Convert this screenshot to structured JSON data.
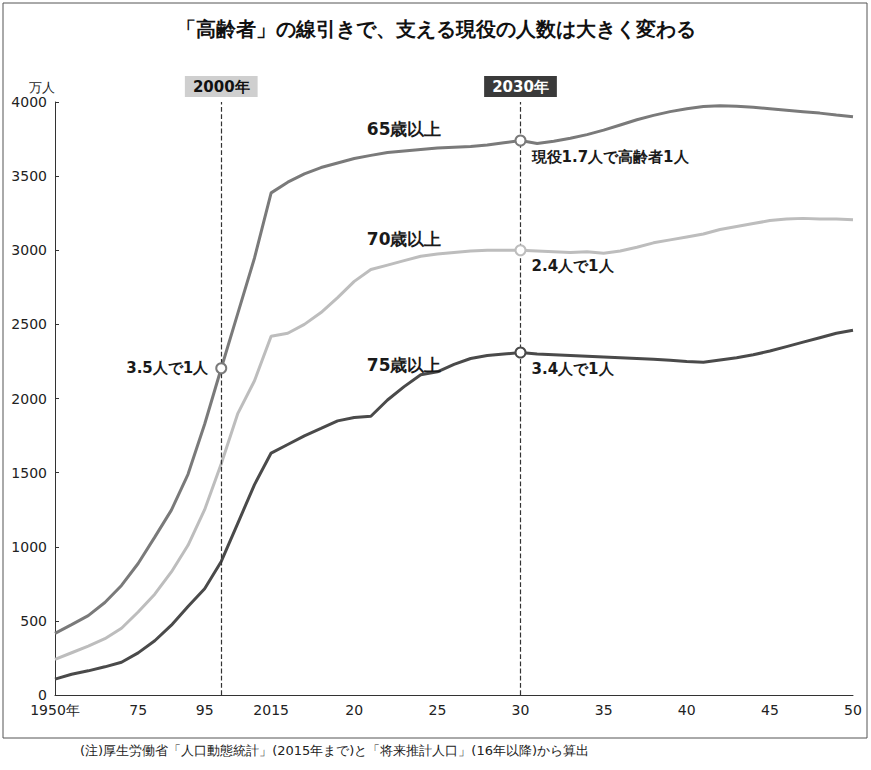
{
  "chart_data": {
    "type": "line",
    "title": "「高齢者」の線引きで、支える現役の人数は大きく変わる",
    "y_label": "万人",
    "note": "(注)厚生労働省「人口動態統計」(2015年まで)と「将来推計人口」(16年以降)から算出",
    "categories": [
      "1950年",
      null,
      null,
      null,
      null,
      "75",
      null,
      null,
      null,
      "95",
      null,
      null,
      null,
      "2015",
      null,
      null,
      null,
      null,
      "20",
      null,
      null,
      null,
      null,
      "25",
      null,
      null,
      null,
      null,
      "30",
      null,
      null,
      null,
      null,
      "35",
      null,
      null,
      null,
      null,
      "40",
      null,
      null,
      null,
      null,
      "45",
      null,
      null,
      null,
      null,
      "50"
    ],
    "series": [
      {
        "name": "65歳以上",
        "color": "#7a7a7a",
        "values": [
          416,
          475,
          535,
          624,
          739,
          887,
          1065,
          1247,
          1489,
          1826,
          2204,
          2576,
          2948,
          3387,
          3459,
          3515,
          3558,
          3589,
          3619,
          3640,
          3660,
          3670,
          3680,
          3690,
          3695,
          3700,
          3710,
          3725,
          3740,
          3720,
          3735,
          3755,
          3780,
          3810,
          3845,
          3880,
          3910,
          3935,
          3955,
          3970,
          3975,
          3972,
          3965,
          3955,
          3945,
          3935,
          3925,
          3912,
          3900
        ]
      },
      {
        "name": "70歳以上",
        "color": "#bdbdbd",
        "values": [
          240,
          285,
          330,
          380,
          450,
          560,
          680,
          830,
          1010,
          1250,
          1560,
          1900,
          2120,
          2420,
          2440,
          2500,
          2580,
          2680,
          2790,
          2870,
          2900,
          2930,
          2960,
          2975,
          2985,
          2995,
          3000,
          3000,
          3000,
          2995,
          2990,
          2985,
          2990,
          2980,
          2995,
          3020,
          3050,
          3070,
          3090,
          3110,
          3140,
          3160,
          3180,
          3200,
          3210,
          3215,
          3210,
          3210,
          3205
        ]
      },
      {
        "name": "75歳以上",
        "color": "#4a4a4a",
        "values": [
          107,
          140,
          163,
          190,
          221,
          284,
          366,
          471,
          597,
          717,
          901,
          1160,
          1419,
          1632,
          1690,
          1748,
          1798,
          1849,
          1872,
          1880,
          1990,
          2080,
          2160,
          2180,
          2230,
          2270,
          2290,
          2300,
          2310,
          2300,
          2295,
          2290,
          2285,
          2280,
          2275,
          2270,
          2265,
          2258,
          2250,
          2245,
          2260,
          2275,
          2295,
          2320,
          2350,
          2380,
          2410,
          2440,
          2460
        ]
      }
    ],
    "markers": [
      {
        "label": "2000年",
        "x_index": 10,
        "color": "#cfcfcf"
      },
      {
        "label": "2030年",
        "x_index": 28,
        "color": "#3a3a3a"
      }
    ],
    "annotations": [
      {
        "text": "3.5人で1人",
        "series": "65歳以上",
        "x_index": 10
      },
      {
        "text": "現役1.7人で高齢者1人",
        "series": "65歳以上",
        "x_index": 28
      },
      {
        "text": "2.4人で1人",
        "series": "70歳以上",
        "x_index": 28
      },
      {
        "text": "3.4人で1人",
        "series": "75歳以上",
        "x_index": 28
      }
    ],
    "ylim": [
      0,
      4000
    ],
    "yticks": [
      0,
      500,
      1000,
      1500,
      2000,
      2500,
      3000,
      3500,
      4000
    ],
    "grid": false
  }
}
